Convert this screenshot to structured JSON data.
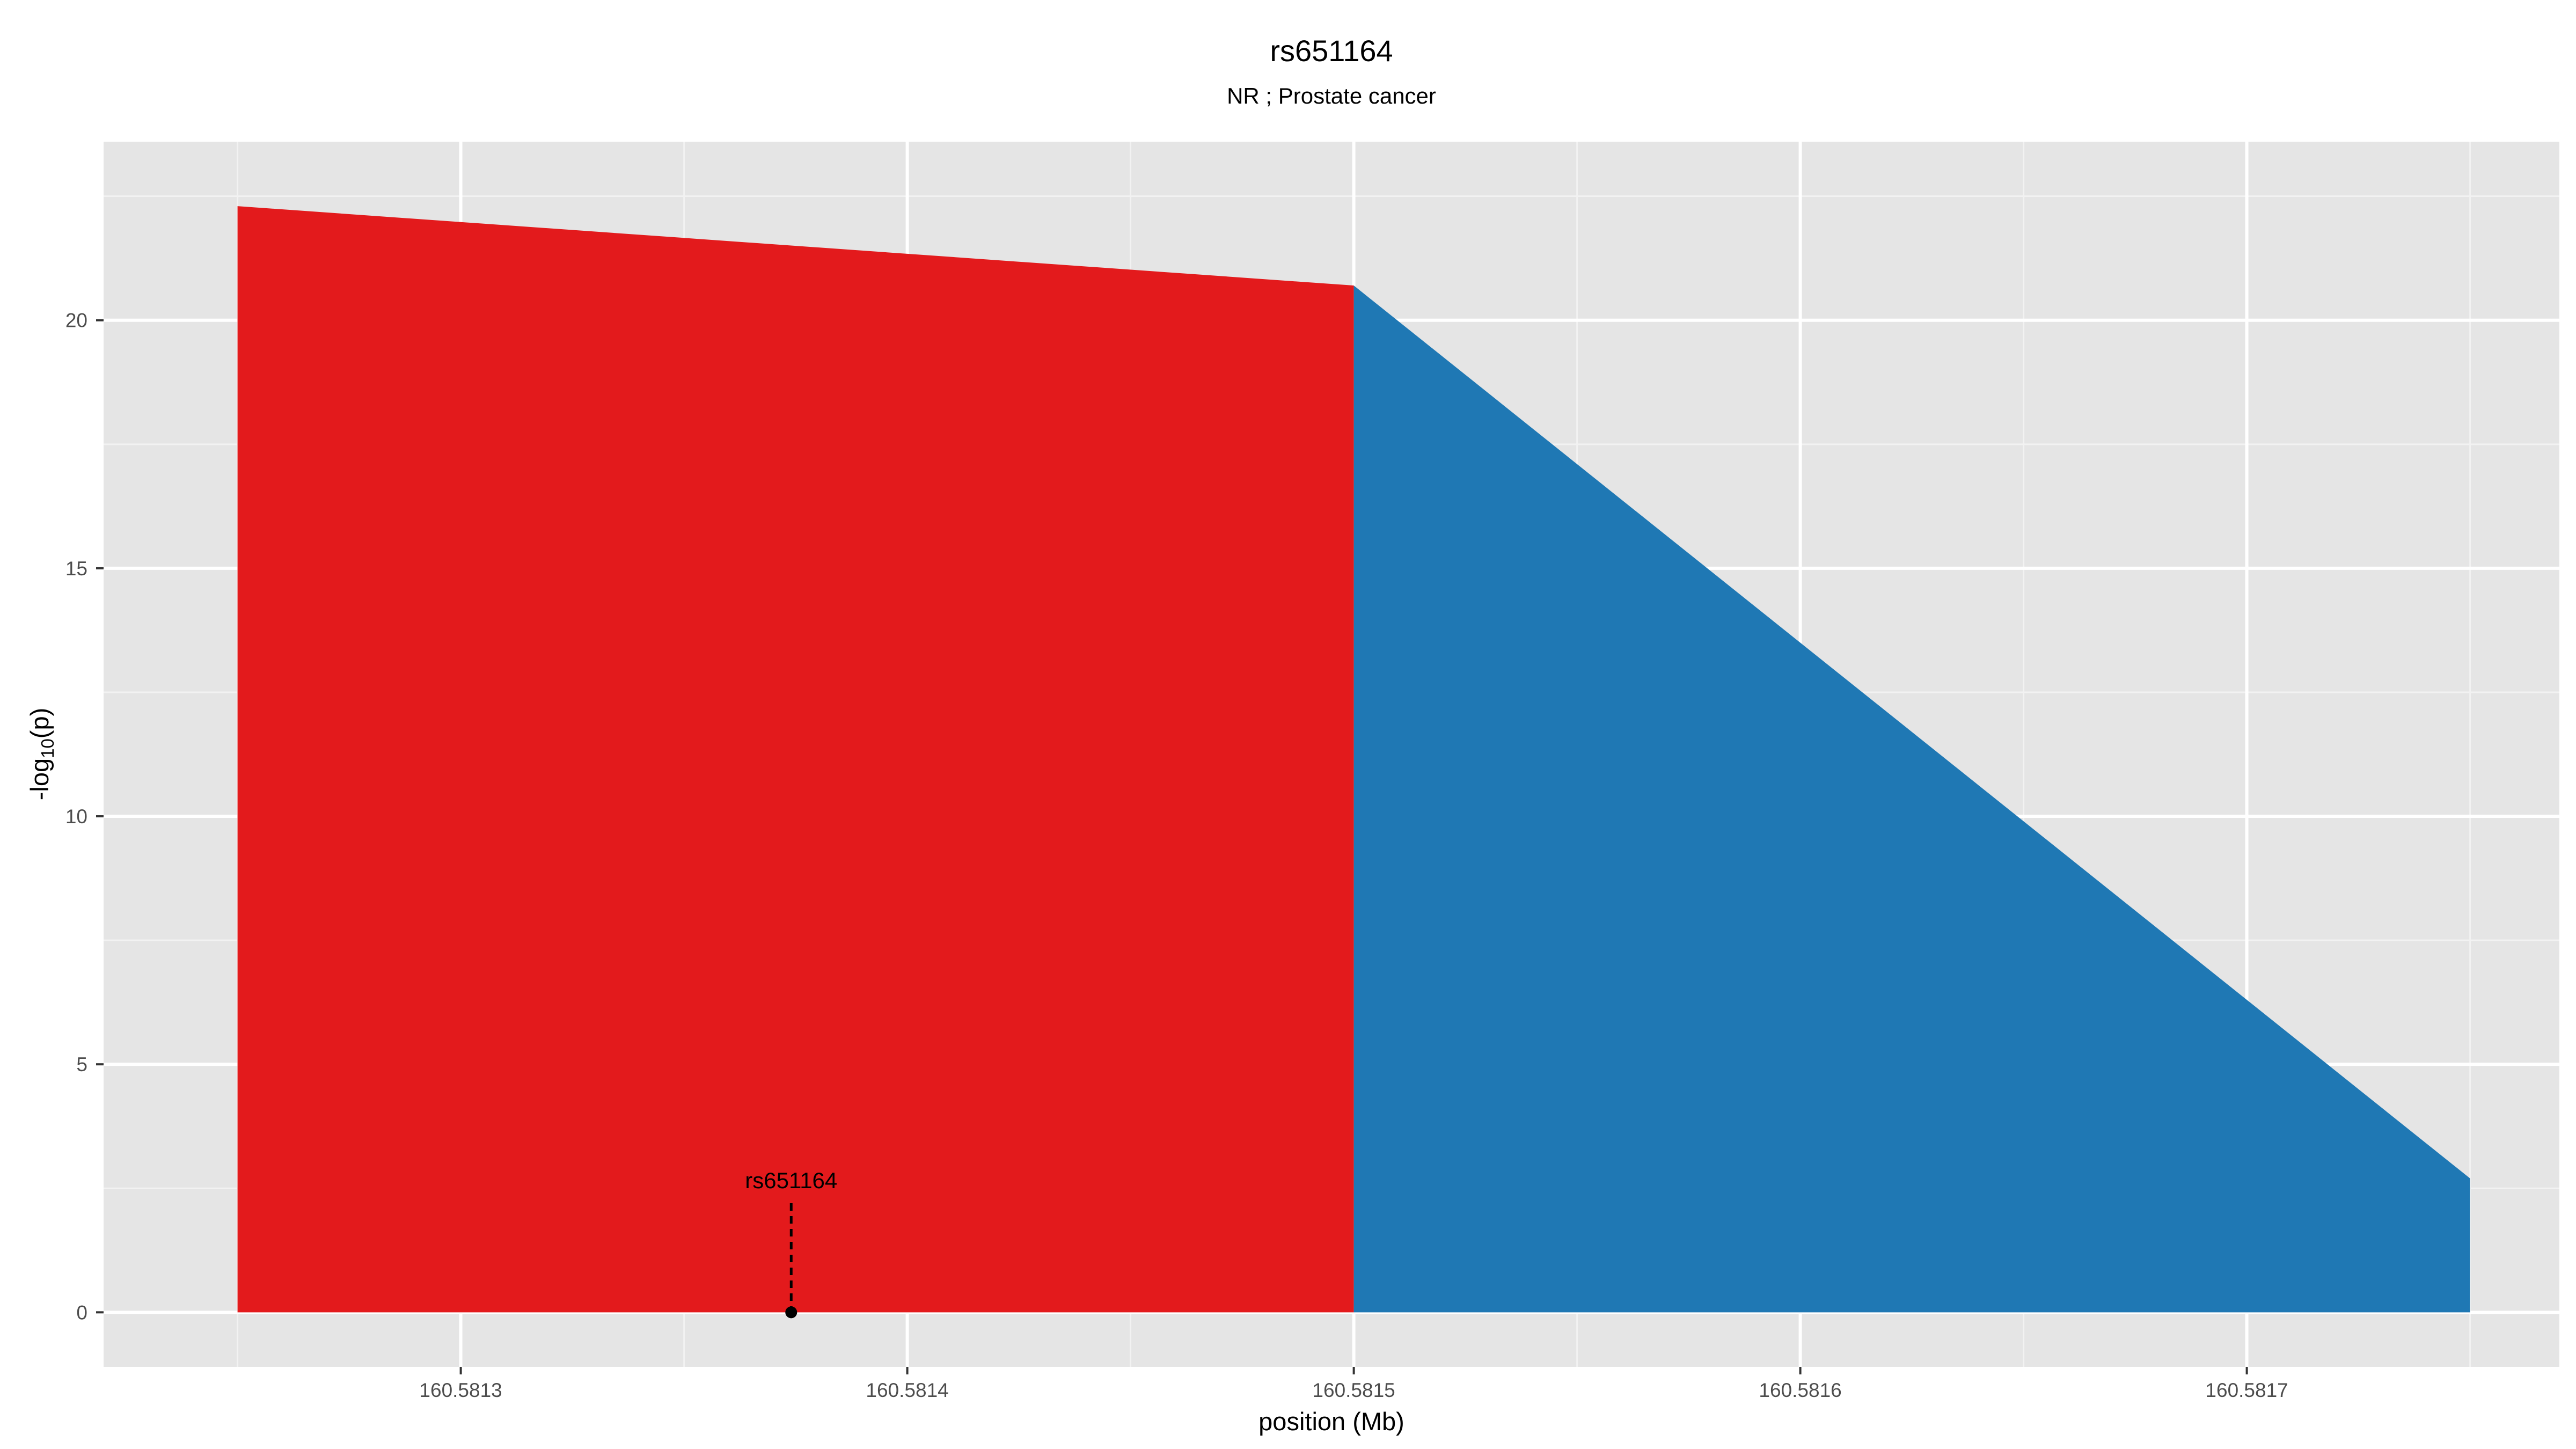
{
  "chart_data": {
    "type": "area",
    "title": "rs651164",
    "subtitle": "NR ; Prostate cancer",
    "xlabel": "position (Mb)",
    "ylabel_main": "-log",
    "ylabel_sub": "10",
    "ylabel_tail": "(p)",
    "xlim": [
      160.58122,
      160.58177
    ],
    "ylim": [
      -1.1,
      23.6
    ],
    "x_ticks": [
      {
        "value": 160.5813,
        "label": "160.5813"
      },
      {
        "value": 160.5814,
        "label": "160.5814"
      },
      {
        "value": 160.5815,
        "label": "160.5815"
      },
      {
        "value": 160.5816,
        "label": "160.5816"
      },
      {
        "value": 160.5817,
        "label": "160.5817"
      }
    ],
    "x_minor_ticks": [
      160.58125,
      160.58135,
      160.58145,
      160.58155,
      160.58165,
      160.58175
    ],
    "y_ticks": [
      {
        "value": 0,
        "label": "0"
      },
      {
        "value": 5,
        "label": "5"
      },
      {
        "value": 10,
        "label": "10"
      },
      {
        "value": 15,
        "label": "15"
      },
      {
        "value": 20,
        "label": "20"
      }
    ],
    "y_minor_ticks": [
      2.5,
      7.5,
      12.5,
      17.5,
      22.5
    ],
    "grid": true,
    "series": [
      {
        "color": "#E31A1C",
        "x": [
          160.58125,
          160.5815
        ],
        "y": [
          22.3,
          20.7
        ]
      },
      {
        "color": "#1F78B4",
        "x": [
          160.5815,
          160.58175
        ],
        "y": [
          20.7,
          2.7
        ]
      }
    ],
    "annotation": {
      "label": "rs651164",
      "x": 160.581374,
      "y": 0,
      "line_top": 2.2
    }
  },
  "colors": {
    "panel_background": "#E5E5E5",
    "grid_major": "#FFFFFF",
    "grid_minor": "#F2F2F2"
  }
}
